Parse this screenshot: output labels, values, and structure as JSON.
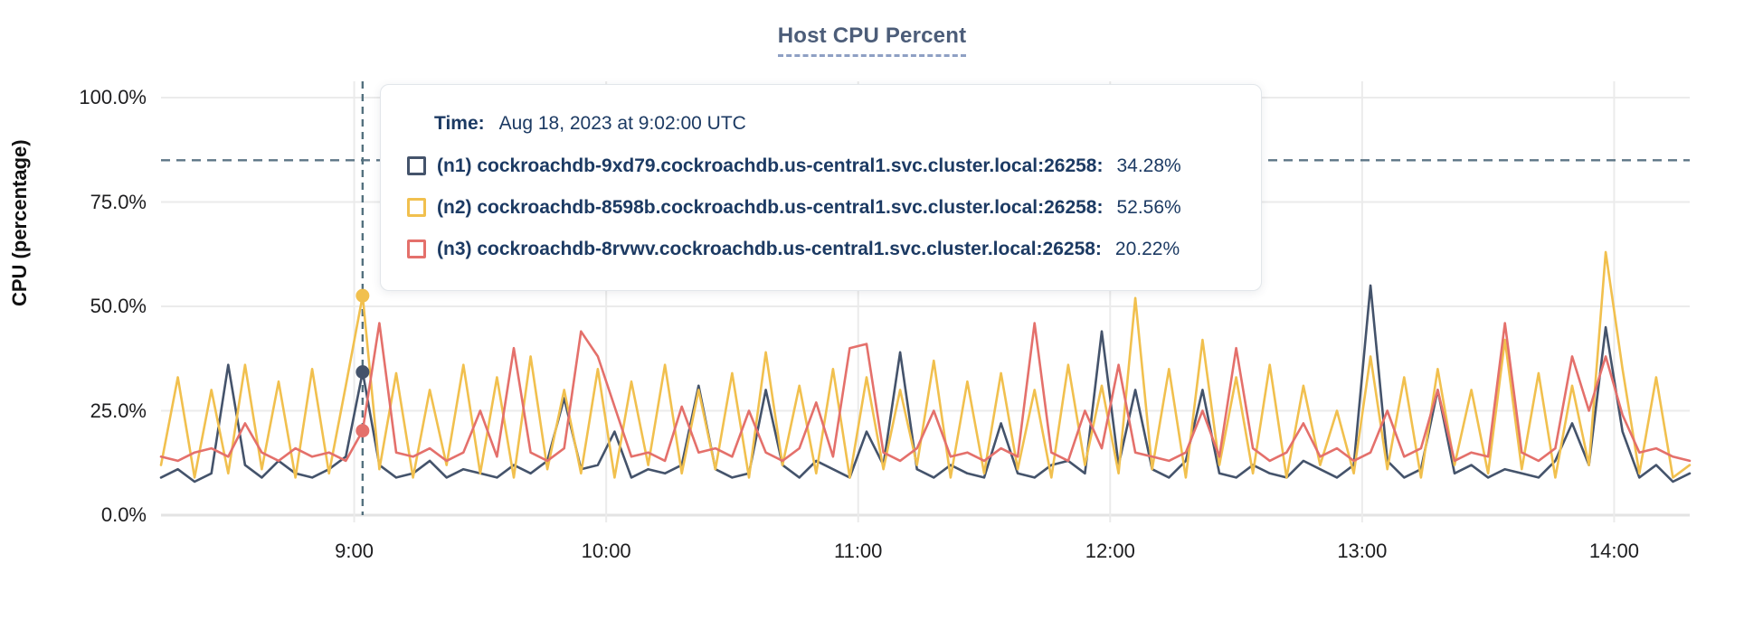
{
  "title": "Host CPU Percent",
  "tooltip": {
    "time_label": "Time:",
    "time_value": "Aug 18, 2023 at 9:02:00 UTC",
    "rows": [
      {
        "id": "n1",
        "label": "(n1) cockroachdb-9xd79.cockroachdb.us-central1.svc.cluster.local:26258:",
        "value": "34.28%",
        "color": "#44536b"
      },
      {
        "id": "n2",
        "label": "(n2) cockroachdb-8598b.cockroachdb.us-central1.svc.cluster.local:26258:",
        "value": "52.56%",
        "color": "#f1c04e"
      },
      {
        "id": "n3",
        "label": "(n3) cockroachdb-8rvwv.cockroachdb.us-central1.svc.cluster.local:26258:",
        "value": "20.22%",
        "color": "#e4706b"
      }
    ]
  },
  "colors": {
    "grid": "#ebebeb",
    "zero_line": "#e3e3e3",
    "threshold": "#5d7686",
    "crosshair": "#53707e",
    "title_text": "#4c5d79",
    "tooltip_text": "#1c3a63"
  },
  "chart_data": {
    "type": "line",
    "title": "Host CPU Percent",
    "xlabel": "",
    "ylabel": "CPU (percentage)",
    "ylim": [
      0,
      100
    ],
    "grid": true,
    "legend_position": "tooltip-overlay",
    "x_start_min": 494,
    "x_step_min": 4,
    "x_ticks": [
      {
        "label": "9:00",
        "minutes": 540
      },
      {
        "label": "10:00",
        "minutes": 600
      },
      {
        "label": "11:00",
        "minutes": 660
      },
      {
        "label": "12:00",
        "minutes": 720
      },
      {
        "label": "13:00",
        "minutes": 780
      },
      {
        "label": "14:00",
        "minutes": 840
      }
    ],
    "y_ticks": [
      {
        "label": "0.0%",
        "value": 0
      },
      {
        "label": "25.0%",
        "value": 25
      },
      {
        "label": "50.0%",
        "value": 50
      },
      {
        "label": "75.0%",
        "value": 75
      },
      {
        "label": "100.0%",
        "value": 100
      }
    ],
    "threshold_value": 85,
    "hover": {
      "minutes": 542,
      "points": [
        {
          "series": "n1",
          "value": 34.28
        },
        {
          "series": "n2",
          "value": 52.56
        },
        {
          "series": "n3",
          "value": 20.22
        }
      ]
    },
    "series": [
      {
        "id": "n1",
        "name": "(n1) cockroachdb-9xd79.cockroachdb.us-central1.svc.cluster.local:26258",
        "color": "#44536b",
        "values": [
          9,
          11,
          8,
          10,
          36,
          12,
          9,
          13,
          10,
          9,
          11,
          14,
          34.28,
          12,
          9,
          10,
          13,
          9,
          11,
          10,
          9,
          12,
          10,
          13,
          28,
          11,
          12,
          20,
          9,
          11,
          10,
          12,
          31,
          11,
          9,
          10,
          30,
          12,
          9,
          13,
          11,
          9,
          20,
          12,
          39,
          11,
          9,
          12,
          10,
          9,
          22,
          10,
          9,
          12,
          13,
          10,
          44,
          12,
          30,
          11,
          9,
          13,
          30,
          10,
          9,
          12,
          10,
          9,
          13,
          11,
          9,
          12,
          55,
          13,
          9,
          11,
          30,
          10,
          12,
          9,
          11,
          10,
          9,
          13,
          22,
          12,
          45,
          20,
          9,
          12,
          8,
          10
        ]
      },
      {
        "id": "n2",
        "name": "(n2) cockroachdb-8598b.cockroachdb.us-central1.svc.cluster.local:26258",
        "color": "#f1c04e",
        "values": [
          12,
          33,
          9,
          30,
          10,
          36,
          11,
          32,
          9,
          35,
          10,
          31,
          52.56,
          11,
          34,
          9,
          30,
          12,
          36,
          10,
          33,
          9,
          38,
          11,
          30,
          10,
          35,
          9,
          32,
          12,
          36,
          10,
          30,
          11,
          34,
          9,
          39,
          12,
          31,
          10,
          35,
          9,
          33,
          11,
          30,
          12,
          37,
          9,
          32,
          10,
          34,
          11,
          30,
          9,
          36,
          12,
          31,
          10,
          52,
          11,
          35,
          9,
          42,
          12,
          33,
          10,
          36,
          9,
          31,
          12,
          25,
          10,
          38,
          11,
          33,
          9,
          35,
          12,
          30,
          10,
          42,
          11,
          34,
          9,
          31,
          12,
          63,
          35,
          10,
          33,
          9,
          12
        ]
      },
      {
        "id": "n3",
        "name": "(n3) cockroachdb-8rvwv.cockroachdb.us-central1.svc.cluster.local:26258",
        "color": "#e4706b",
        "values": [
          14,
          13,
          15,
          16,
          14,
          22,
          15,
          13,
          16,
          14,
          15,
          13,
          20.22,
          46,
          15,
          14,
          16,
          13,
          15,
          25,
          14,
          40,
          15,
          13,
          16,
          44,
          38,
          26,
          14,
          15,
          13,
          26,
          15,
          16,
          14,
          25,
          15,
          13,
          16,
          27,
          14,
          40,
          41,
          15,
          13,
          16,
          25,
          14,
          15,
          13,
          16,
          14,
          46,
          15,
          13,
          25,
          16,
          36,
          15,
          14,
          13,
          15,
          25,
          14,
          40,
          16,
          13,
          15,
          22,
          14,
          16,
          13,
          15,
          25,
          14,
          16,
          30,
          13,
          15,
          14,
          46,
          15,
          13,
          16,
          38,
          25,
          38,
          24,
          15,
          16,
          14,
          13
        ]
      }
    ]
  }
}
